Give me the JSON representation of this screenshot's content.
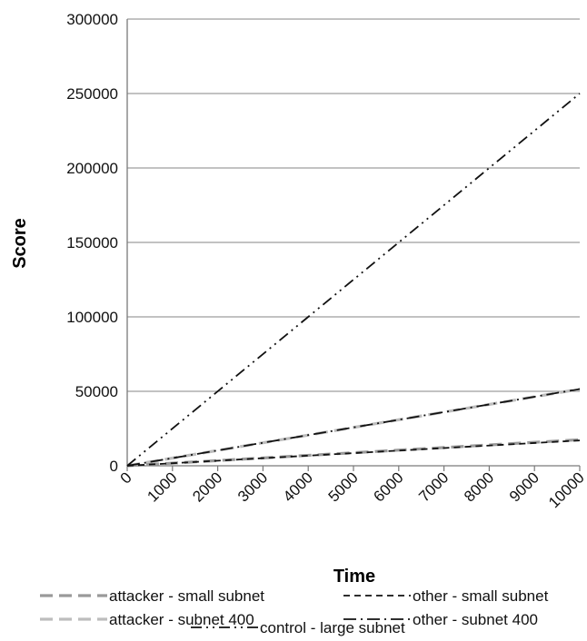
{
  "chart_data": {
    "type": "line",
    "title": "",
    "xlabel": "Time",
    "ylabel": "Score",
    "xlim": [
      0,
      10000
    ],
    "ylim": [
      0,
      300000
    ],
    "x_ticks": [
      "0",
      "1000",
      "2000",
      "3000",
      "4000",
      "5000",
      "6000",
      "7000",
      "8000",
      "9000",
      "10000"
    ],
    "y_ticks": [
      "0",
      "50000",
      "100000",
      "150000",
      "200000",
      "250000",
      "300000"
    ],
    "grid": "horizontal",
    "legend_position": "bottom",
    "x": [
      0,
      10000
    ],
    "series": [
      {
        "name": "attacker - small subnet",
        "values": [
          0,
          17500
        ],
        "color": "#9a9a9a",
        "dash": "long-dash"
      },
      {
        "name": "other - small subnet",
        "values": [
          0,
          17000
        ],
        "color": "#111111",
        "dash": "dash"
      },
      {
        "name": "attacker - subnet 400",
        "values": [
          0,
          51500
        ],
        "color": "#bdbdbd",
        "dash": "long-dash"
      },
      {
        "name": "other - subnet 400",
        "values": [
          0,
          51500
        ],
        "color": "#111111",
        "dash": "dash-dot"
      },
      {
        "name": "control - large subnet",
        "values": [
          0,
          250000
        ],
        "color": "#111111",
        "dash": "dash-dot-dot"
      }
    ]
  }
}
